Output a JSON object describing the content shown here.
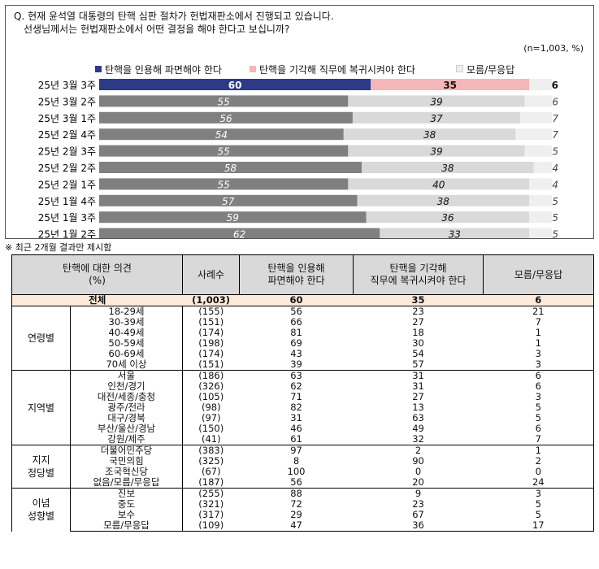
{
  "question": {
    "line1": "Q. 현재 윤석열 대통령의 탄핵 심판 절차가 헌법재판소에서 진행되고 있습니다.",
    "line2": "선생님께서는 헌법재판소에서 어떤 결정을 해야 한다고 보십니까?"
  },
  "sample_note": "(n=1,003,  %)",
  "colors": {
    "accent_first": "#2e3a87",
    "accent_second": "#f4b6b9",
    "series1": "#808080",
    "series2": "#d9d9d9",
    "series3": "#efefef"
  },
  "chart_data": {
    "type": "bar",
    "orientation": "horizontal",
    "stacked": true,
    "xlim": [
      0,
      100
    ],
    "categories": [
      "25년 3월 3주",
      "25년 3월 2주",
      "25년 3월 1주",
      "25년 2월 4주",
      "25년 2월 3주",
      "25년 2월 2주",
      "25년 2월 1주",
      "25년 1월 4주",
      "25년 1월 3주",
      "25년 1월 2주"
    ],
    "series": [
      {
        "name": "탄핵을 인용해 파면해야 한다",
        "values": [
          60,
          55,
          56,
          54,
          55,
          58,
          55,
          57,
          59,
          62
        ]
      },
      {
        "name": "탄핵을 기각해 직무에 복귀시켜야 한다",
        "values": [
          35,
          39,
          37,
          38,
          39,
          38,
          40,
          38,
          36,
          33
        ]
      },
      {
        "name": "모름/무응답",
        "values": [
          6,
          6,
          7,
          7,
          5,
          4,
          4,
          5,
          5,
          5
        ]
      }
    ],
    "legend_position": "top"
  },
  "table": {
    "note": "※ 최근 2개월 결과만 제시함",
    "headers": {
      "opinion_line1": "탄핵에 대한 의견",
      "opinion_line2": "(%)",
      "cases": "사례수",
      "uphold_line1": "탄핵을 인용해",
      "uphold_line2": "파면해야 한다",
      "dismiss_line1": "탄핵을 기각해",
      "dismiss_line2": "직무에 복귀시켜야 한다",
      "unknown": "모름/무응답"
    },
    "total": {
      "label": "전체",
      "n": "(1,003)",
      "uphold": "60",
      "dismiss": "35",
      "unknown": "6"
    },
    "groups": [
      {
        "label": "연령별",
        "rows": [
          {
            "label": "18-29세",
            "n": "(155)",
            "uphold": "56",
            "dismiss": "23",
            "unknown": "21"
          },
          {
            "label": "30-39세",
            "n": "(151)",
            "uphold": "66",
            "dismiss": "27",
            "unknown": "7"
          },
          {
            "label": "40-49세",
            "n": "(174)",
            "uphold": "81",
            "dismiss": "18",
            "unknown": "1"
          },
          {
            "label": "50-59세",
            "n": "(198)",
            "uphold": "69",
            "dismiss": "30",
            "unknown": "1"
          },
          {
            "label": "60-69세",
            "n": "(174)",
            "uphold": "43",
            "dismiss": "54",
            "unknown": "3"
          },
          {
            "label": "70세 이상",
            "n": "(151)",
            "uphold": "39",
            "dismiss": "57",
            "unknown": "3"
          }
        ]
      },
      {
        "label": "지역별",
        "rows": [
          {
            "label": "서울",
            "n": "(186)",
            "uphold": "63",
            "dismiss": "31",
            "unknown": "6"
          },
          {
            "label": "인천/경기",
            "n": "(326)",
            "uphold": "62",
            "dismiss": "31",
            "unknown": "6"
          },
          {
            "label": "대전/세종/충청",
            "n": "(105)",
            "uphold": "71",
            "dismiss": "27",
            "unknown": "3"
          },
          {
            "label": "광주/전라",
            "n": "(98)",
            "uphold": "82",
            "dismiss": "13",
            "unknown": "5"
          },
          {
            "label": "대구/경북",
            "n": "(97)",
            "uphold": "31",
            "dismiss": "63",
            "unknown": "5"
          },
          {
            "label": "부산/울산/경남",
            "n": "(150)",
            "uphold": "46",
            "dismiss": "49",
            "unknown": "6"
          },
          {
            "label": "강원/제주",
            "n": "(41)",
            "uphold": "61",
            "dismiss": "32",
            "unknown": "7"
          }
        ]
      },
      {
        "label": "지지\n정당별",
        "rows": [
          {
            "label": "더불어민주당",
            "n": "(383)",
            "uphold": "97",
            "dismiss": "2",
            "unknown": "1"
          },
          {
            "label": "국민의힘",
            "n": "(325)",
            "uphold": "8",
            "dismiss": "90",
            "unknown": "2"
          },
          {
            "label": "조국혁신당",
            "n": "(67)",
            "uphold": "100",
            "dismiss": "0",
            "unknown": "0"
          },
          {
            "label": "없음/모름/무응답",
            "n": "(187)",
            "uphold": "56",
            "dismiss": "20",
            "unknown": "24"
          }
        ]
      },
      {
        "label": "이념\n성향별",
        "rows": [
          {
            "label": "진보",
            "n": "(255)",
            "uphold": "88",
            "dismiss": "9",
            "unknown": "3"
          },
          {
            "label": "중도",
            "n": "(321)",
            "uphold": "72",
            "dismiss": "23",
            "unknown": "5"
          },
          {
            "label": "보수",
            "n": "(317)",
            "uphold": "29",
            "dismiss": "67",
            "unknown": "5"
          },
          {
            "label": "모름/무응답",
            "n": "(109)",
            "uphold": "47",
            "dismiss": "36",
            "unknown": "17"
          }
        ]
      }
    ]
  }
}
